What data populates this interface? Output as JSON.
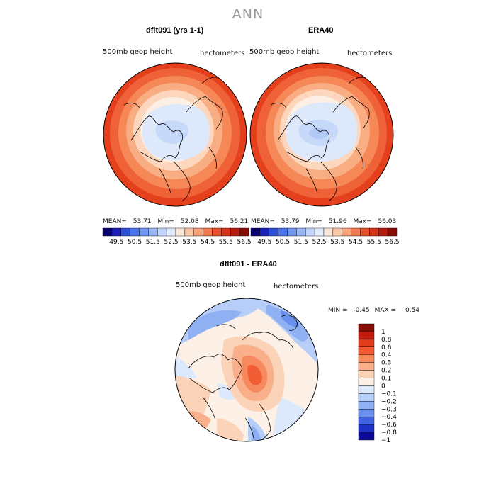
{
  "title": "ANN",
  "panels": [
    {
      "title": "dflt091 (yrs 1-1)",
      "field": "500mb geop height",
      "units": "hectometers",
      "stats": {
        "mean_label": "MEAN=",
        "mean": "53.71",
        "min_label": "Min=",
        "min": "52.08",
        "max_label": "Max=",
        "max": "56.21"
      }
    },
    {
      "title": "ERA40",
      "field": "500mb geop height",
      "units": "hectometers",
      "stats": {
        "mean_label": "MEAN=",
        "mean": "53.79",
        "min_label": "Min=",
        "min": "51.96",
        "max_label": "Max=",
        "max": "56.03"
      }
    }
  ],
  "diff_panel": {
    "title": "dflt091 - ERA40",
    "field": "500mb geop height",
    "units": "hectometers",
    "min_label": "MIN =",
    "min": "-0.45",
    "max_label": "MAX =",
    "max": "0.54"
  },
  "colorbar_abs": {
    "labels": [
      "49.5",
      "50.5",
      "51.5",
      "52.5",
      "53.5",
      "54.5",
      "55.5",
      "56.5"
    ],
    "colors": [
      "#08006e",
      "#1a1fb8",
      "#2f4fd9",
      "#4a74ee",
      "#7096f2",
      "#98b6f6",
      "#c2d6fb",
      "#e3ecfc",
      "#fbe8da",
      "#fbc8a8",
      "#f8a27a",
      "#f37a50",
      "#e8512c",
      "#d8321a",
      "#b81a10",
      "#8a0b05"
    ]
  },
  "colorbar_diff": {
    "labels": [
      "1",
      "0.8",
      "0.6",
      "0.4",
      "0.3",
      "0.2",
      "0.1",
      "0",
      "−0.1",
      "−0.2",
      "−0.3",
      "−0.4",
      "−0.6",
      "−0.8",
      "−1"
    ],
    "colors": [
      "#8a0b05",
      "#c41a0e",
      "#e23a1c",
      "#f05c34",
      "#f68a5e",
      "#f9b08a",
      "#fbd3b8",
      "#fdf0e6",
      "#dce8fb",
      "#b7cff8",
      "#8fb1f3",
      "#6a90ee",
      "#3f62e3",
      "#1e30c6",
      "#0a0a96"
    ]
  },
  "map_colors": {
    "land_line": "#000000"
  }
}
